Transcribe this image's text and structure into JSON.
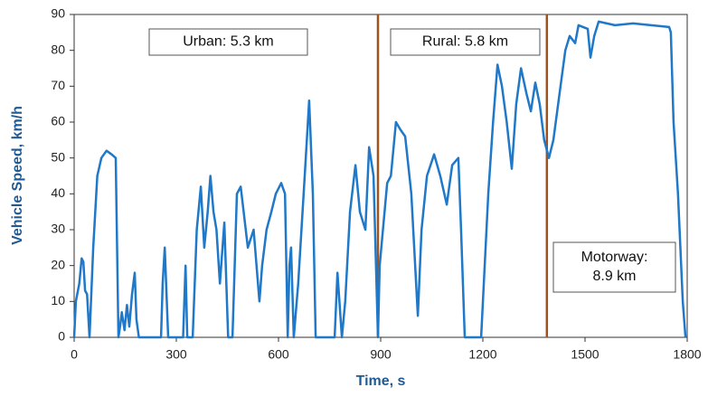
{
  "chart_data": {
    "type": "line",
    "x_label": "Time, s",
    "y_label": "Vehicle Speed, km/h",
    "color": "#1f78c8",
    "xlim": [
      0,
      1800
    ],
    "xticks": [
      0,
      300,
      600,
      900,
      1200,
      1500,
      1800
    ],
    "ylim": [
      0,
      90
    ],
    "yticks": [
      0,
      10,
      20,
      30,
      40,
      50,
      60,
      70,
      80,
      90
    ],
    "x": [
      0,
      5,
      15,
      22,
      27,
      32,
      38,
      45,
      56,
      68,
      80,
      95,
      110,
      122,
      130,
      135,
      140,
      148,
      155,
      162,
      170,
      178,
      183,
      190,
      255,
      260,
      266,
      276,
      320,
      327,
      332,
      348,
      360,
      372,
      382,
      392,
      400,
      409,
      418,
      428,
      441,
      452,
      465,
      478,
      489,
      510,
      527,
      544,
      552,
      565,
      579,
      592,
      608,
      619,
      627,
      632,
      637,
      645,
      658,
      677,
      690,
      701,
      709,
      765,
      773,
      786,
      796,
      810,
      826,
      839,
      855,
      866,
      879,
      892,
      897,
      919,
      930,
      945,
      957,
      972,
      990,
      1009,
      1020,
      1036,
      1057,
      1075,
      1094,
      1110,
      1128,
      1136,
      1147,
      1195,
      1216,
      1230,
      1243,
      1256,
      1270,
      1285,
      1298,
      1312,
      1328,
      1341,
      1354,
      1367,
      1380,
      1394,
      1407,
      1428,
      1442,
      1455,
      1471,
      1481,
      1508,
      1516,
      1527,
      1540,
      1588,
      1641,
      1694,
      1747,
      1752,
      1760,
      1773,
      1787,
      1795
    ],
    "values": [
      0,
      10,
      15,
      22,
      21,
      13,
      12,
      0,
      25,
      45,
      50,
      52,
      51,
      50,
      0,
      3,
      7,
      2,
      9,
      3,
      12,
      18,
      5,
      0,
      0,
      15,
      25,
      0,
      0,
      20,
      0,
      0,
      30,
      42,
      25,
      35,
      45,
      35,
      30,
      15,
      32,
      0,
      0,
      40,
      42,
      25,
      30,
      10,
      20,
      30,
      35,
      40,
      43,
      40,
      0,
      20,
      25,
      0,
      15,
      45,
      66,
      40,
      0,
      0,
      18,
      0,
      10,
      35,
      48,
      35,
      30,
      53,
      45,
      0,
      20,
      43,
      45,
      60,
      58,
      56,
      40,
      6,
      30,
      45,
      51,
      45,
      37,
      48,
      50,
      30,
      0,
      0,
      40,
      60,
      76,
      70,
      60,
      47,
      65,
      75,
      68,
      63,
      71,
      65,
      55,
      50,
      55,
      70,
      80,
      84,
      82,
      87,
      86,
      78,
      84,
      88,
      87,
      87.5,
      87,
      86.5,
      85,
      60,
      40,
      10,
      0
    ],
    "vlines": [
      {
        "x": 892,
        "color": "#a0521e"
      },
      {
        "x": 1388,
        "color": "#a0521e"
      }
    ],
    "annotations": [
      {
        "lines": [
          "Urban: 5.3 km"
        ]
      },
      {
        "lines": [
          "Rural: 5.8 km"
        ]
      },
      {
        "lines": [
          "Motorway:",
          "8.9 km"
        ]
      }
    ]
  }
}
